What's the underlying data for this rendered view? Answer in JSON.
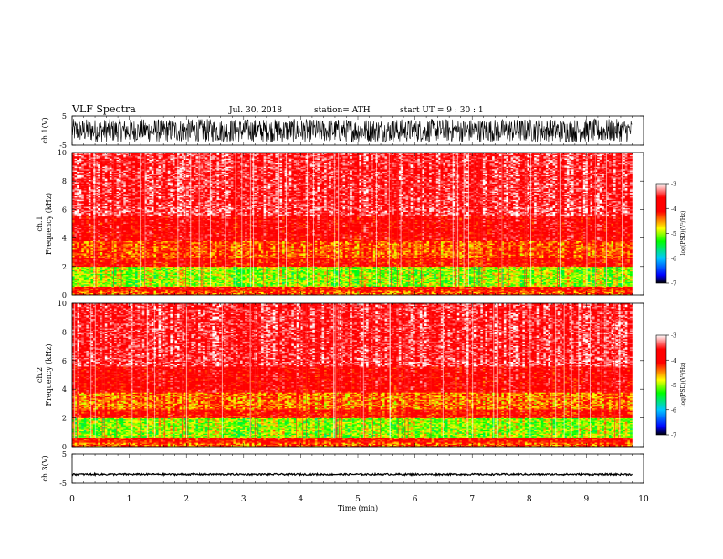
{
  "header": {
    "title": "VLF  Spectra",
    "date": "Jul.  30,  2018",
    "station": "station= ATH",
    "start": "start  UT  =    9  :  30 :  1"
  },
  "colorbar": {
    "label": "log(PSD)(V²/Hz)",
    "ticks": [
      "-3",
      "-4",
      "-5",
      "-6",
      "-7"
    ],
    "stops": [
      "#000000",
      "#0000ff",
      "#00c8ff",
      "#00ff00",
      "#ffff00",
      "#ff0000",
      "#ffffff"
    ]
  },
  "chart_data": [
    {
      "type": "line",
      "name": "ch1-waveform",
      "ylabel": "ch.1(V)",
      "ylim": [
        -5,
        5
      ],
      "yticks": [
        "5",
        "-5"
      ],
      "xlim": [
        0,
        10
      ],
      "description_values": {
        "amplitude_range": [
          -4,
          4
        ],
        "end_time_min": 9.8
      }
    },
    {
      "type": "heatmap",
      "name": "ch1-spectrogram",
      "ylabel": "ch.1\nFrequency  (kHz)",
      "ylabel_lines": [
        "ch.1",
        "Frequency  (kHz)"
      ],
      "ylim": [
        0,
        10
      ],
      "yticks": [
        "0",
        "2",
        "4",
        "6",
        "8",
        "10"
      ],
      "xlim": [
        0,
        10
      ],
      "end_time_min": 9.8,
      "color_range": [
        -7,
        -3
      ],
      "bands": [
        {
          "f": [
            0,
            0.3
          ],
          "level": -4.3
        },
        {
          "f": [
            0.3,
            0.6
          ],
          "level": -4.0
        },
        {
          "f": [
            0.6,
            2.0
          ],
          "level": -5.0
        },
        {
          "f": [
            2.0,
            2.6
          ],
          "level": -4.0
        },
        {
          "f": [
            2.6,
            3.8
          ],
          "level": -4.3
        },
        {
          "f": [
            3.8,
            5.6
          ],
          "level": -3.8
        },
        {
          "f": [
            5.6,
            6.2
          ],
          "level": -3.4
        },
        {
          "f": [
            6.2,
            10.0
          ],
          "level": -3.5
        }
      ]
    },
    {
      "type": "heatmap",
      "name": "ch2-spectrogram",
      "ylabel": "ch.2\nFrequency  (kHz)",
      "ylabel_lines": [
        "ch.2",
        "Frequency  (kHz)"
      ],
      "ylim": [
        0,
        10
      ],
      "yticks": [
        "0",
        "2",
        "4",
        "6",
        "8",
        "10"
      ],
      "xlim": [
        0,
        10
      ],
      "end_time_min": 9.8,
      "color_range": [
        -7,
        -3
      ],
      "bands": [
        {
          "f": [
            0,
            0.3
          ],
          "level": -4.3
        },
        {
          "f": [
            0.3,
            0.6
          ],
          "level": -4.0
        },
        {
          "f": [
            0.6,
            2.0
          ],
          "level": -5.0
        },
        {
          "f": [
            2.0,
            2.6
          ],
          "level": -4.0
        },
        {
          "f": [
            2.6,
            3.8
          ],
          "level": -4.4
        },
        {
          "f": [
            3.8,
            5.6
          ],
          "level": -3.8
        },
        {
          "f": [
            5.6,
            6.2
          ],
          "level": -3.4
        },
        {
          "f": [
            6.2,
            10.0
          ],
          "level": -3.5
        }
      ]
    },
    {
      "type": "line",
      "name": "ch3-waveform",
      "ylabel": "ch.3(V)",
      "ylim": [
        -5,
        5
      ],
      "yticks": [
        "5",
        "-5"
      ],
      "xlim": [
        0,
        10
      ],
      "description_values": {
        "level": -2,
        "amplitude_range": [
          -2.3,
          -1.7
        ],
        "end_time_min": 9.8
      }
    }
  ],
  "xaxis": {
    "label": "Time  (min)",
    "ticks": [
      "0",
      "1",
      "2",
      "3",
      "4",
      "5",
      "6",
      "7",
      "8",
      "9",
      "10"
    ]
  }
}
